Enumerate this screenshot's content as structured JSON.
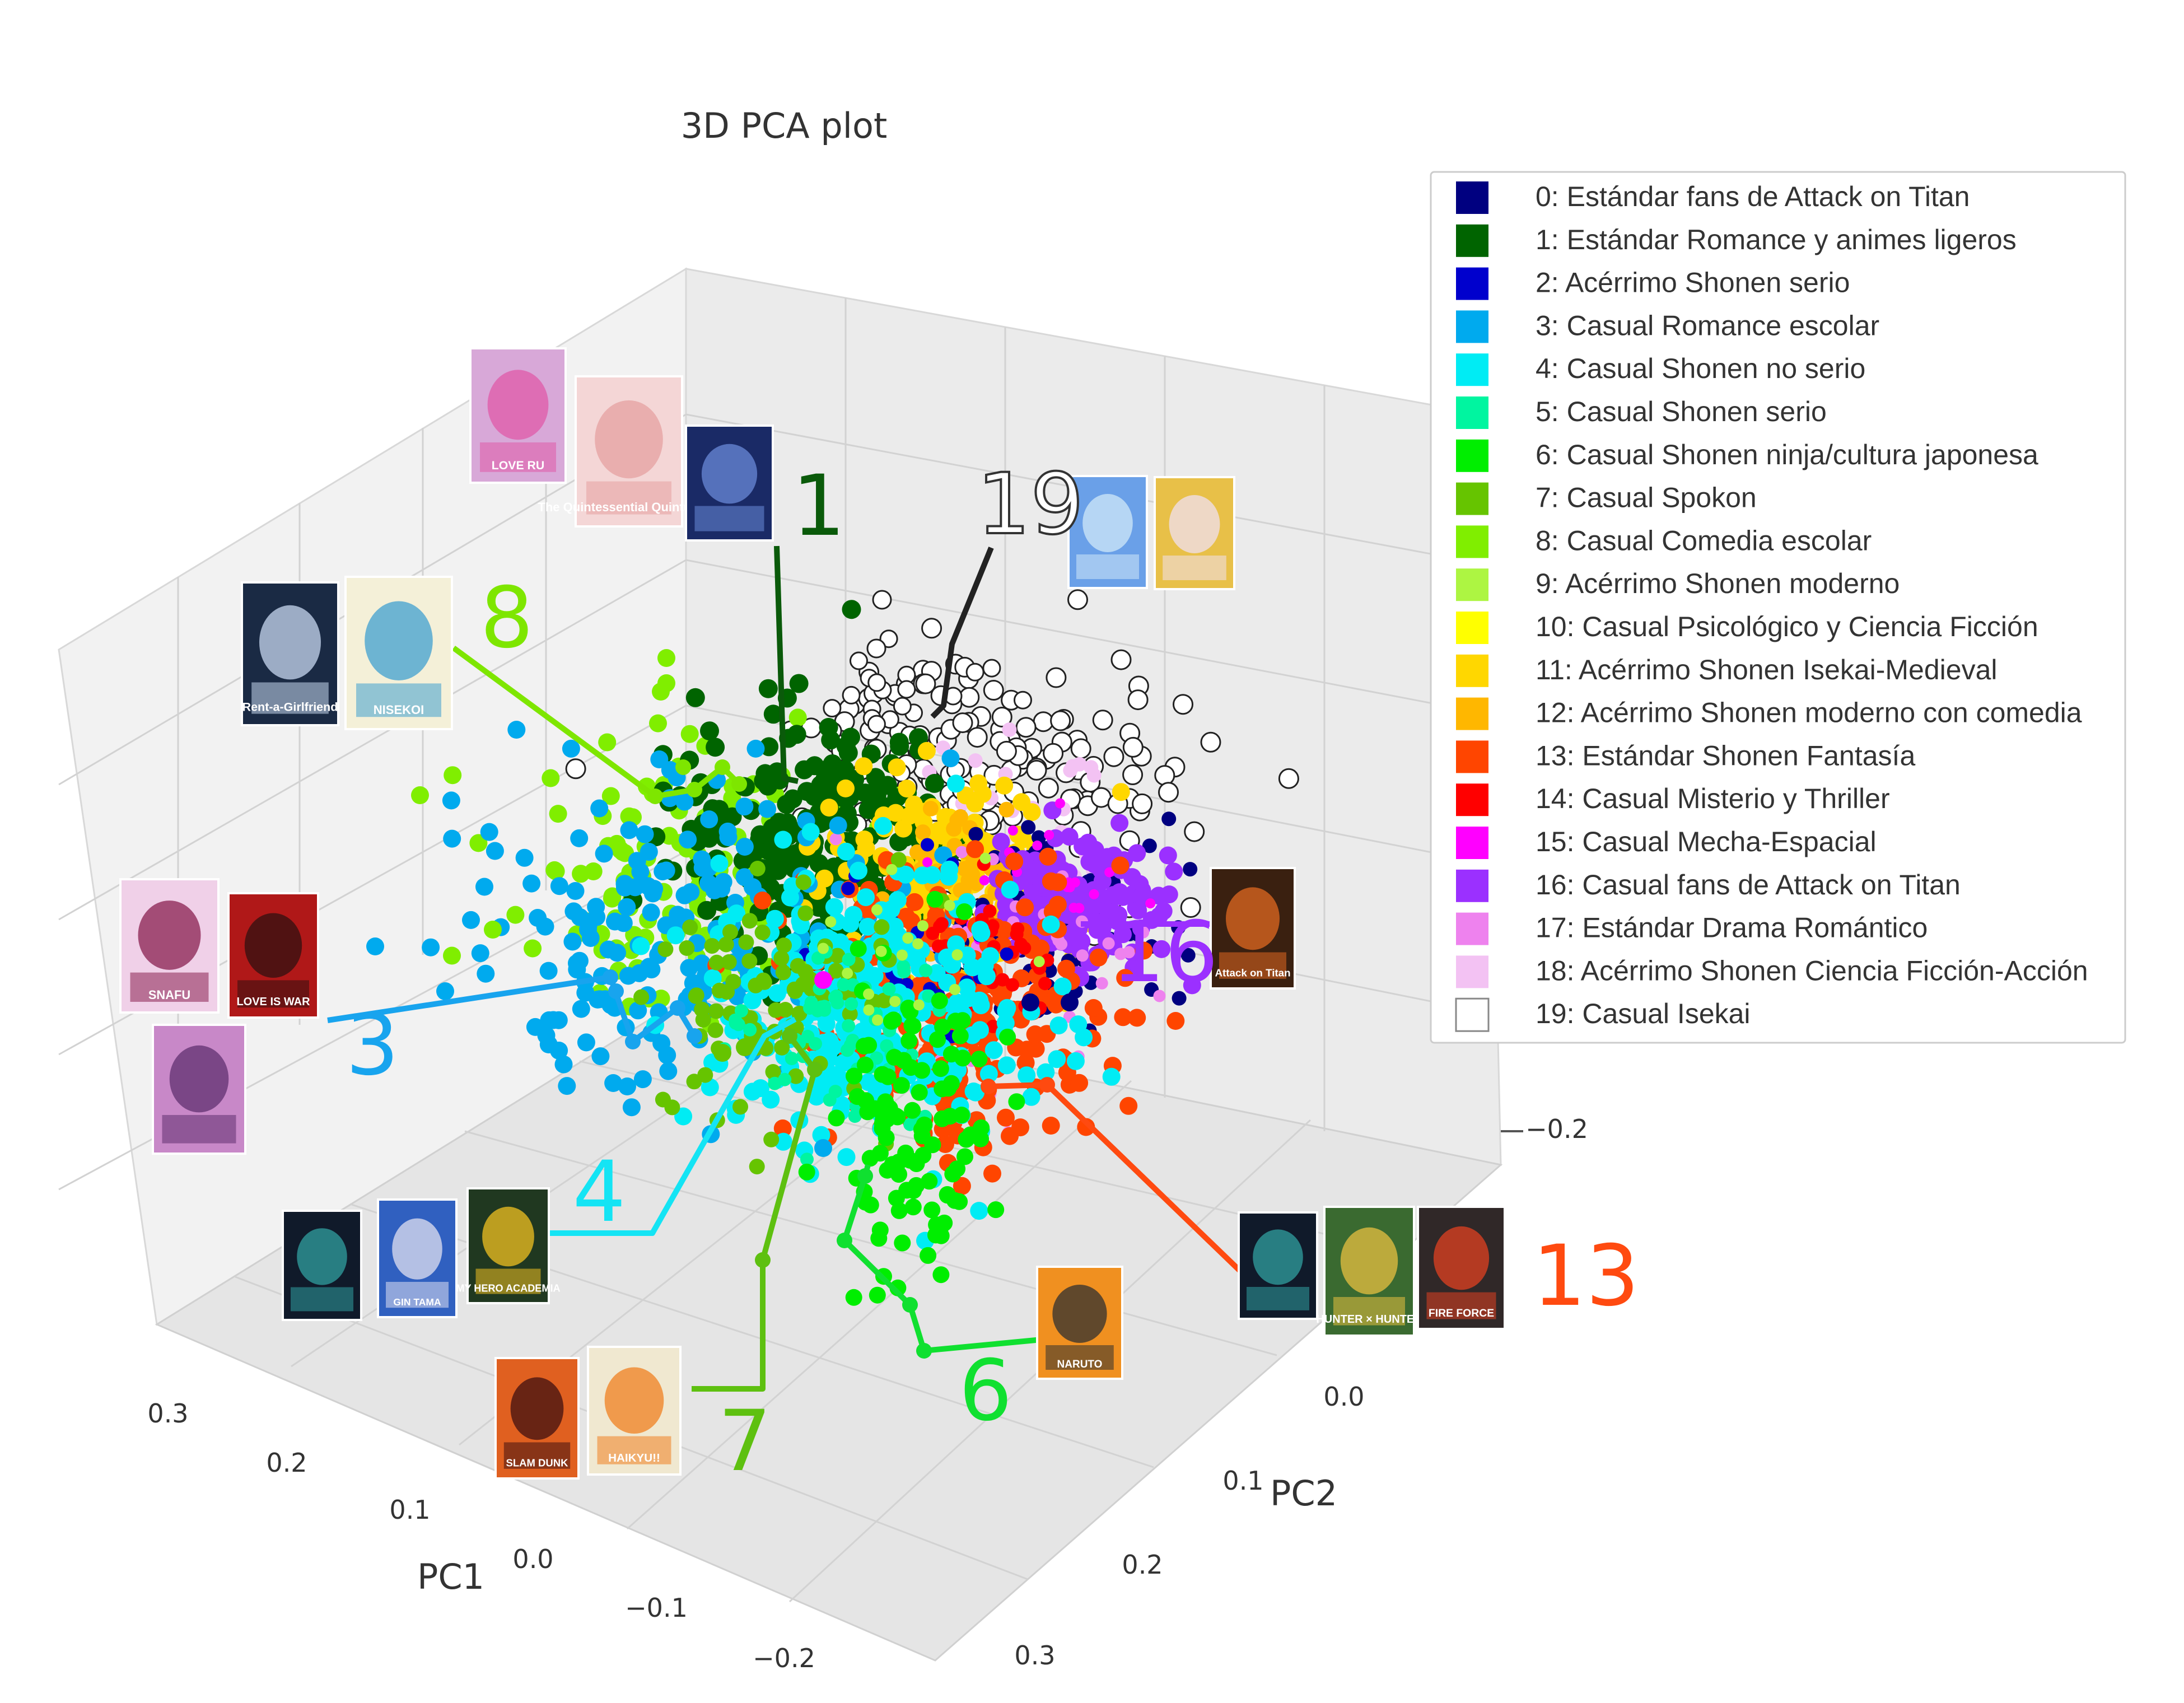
{
  "chart_data": {
    "type": "scatter",
    "projection": "3d",
    "title": "3D PCA plot",
    "xlabel": "PC1",
    "ylabel": "PC2",
    "zlabel": "",
    "x_ticks": [
      "0.3",
      "0.2",
      "0.1",
      "0.0",
      "−0.1",
      "−0.2"
    ],
    "y_ticks": [
      "0.0",
      "0.1",
      "0.2",
      "0.3"
    ],
    "z_ticks": [
      "−0.2"
    ],
    "grid": true,
    "legend_position": "top-right",
    "series": [
      {
        "name": "0: Estándar fans de Attack on Titan",
        "color": "#000080"
      },
      {
        "name": "1: Estándar Romance y animes ligeros",
        "color": "#006400"
      },
      {
        "name": "2: Acérrimo Shonen serio",
        "color": "#0000cd"
      },
      {
        "name": "3: Casual Romance escolar",
        "color": "#00aaee"
      },
      {
        "name": "4: Casual Shonen no serio",
        "color": "#00ecf4"
      },
      {
        "name": "5: Casual Shonen serio",
        "color": "#00f5a0"
      },
      {
        "name": "6: Casual Shonen ninja/cultura japonesa",
        "color": "#00ee00"
      },
      {
        "name": "7: Casual Spokon",
        "color": "#66c400"
      },
      {
        "name": "8: Casual Comedia escolar",
        "color": "#80ee00"
      },
      {
        "name": "9: Acérrimo Shonen moderno",
        "color": "#adf542"
      },
      {
        "name": "10: Casual Psicológico y Ciencia Ficción",
        "color": "#ffff00"
      },
      {
        "name": "11: Acérrimo Shonen Isekai-Medieval",
        "color": "#ffd700"
      },
      {
        "name": "12: Acérrimo Shonen moderno con comedia",
        "color": "#ffb700"
      },
      {
        "name": "13: Estándar Shonen Fantasía",
        "color": "#ff4500"
      },
      {
        "name": "14: Casual Misterio y Thriller",
        "color": "#ff0000"
      },
      {
        "name": "15: Casual Mecha-Espacial",
        "color": "#ff00ff"
      },
      {
        "name": "16: Casual fans de Attack on Titan",
        "color": "#9b30ff"
      },
      {
        "name": "17: Estándar Drama Romántico",
        "color": "#ee82ee"
      },
      {
        "name": "18: Acérrimo Shonen Ciencia Ficción-Acción",
        "color": "#f3c2f3"
      },
      {
        "name": "19: Casual Isekai",
        "color": "#ffffff"
      }
    ]
  },
  "annotations": [
    {
      "label": "1",
      "color": "#0a5a0a"
    },
    {
      "label": "19",
      "color": "#333333"
    },
    {
      "label": "8",
      "color": "#7ee600"
    },
    {
      "label": "3",
      "color": "#18a4ee"
    },
    {
      "label": "16",
      "color": "#9b30ff"
    },
    {
      "label": "4",
      "color": "#14e4f4"
    },
    {
      "label": "7",
      "color": "#5ec010"
    },
    {
      "label": "6",
      "color": "#10e030"
    },
    {
      "label": "13",
      "color": "#ff4a10"
    }
  ],
  "covers": {
    "love_ru": "LOVE RU",
    "quintuplets": "The Quintessential Quintuplets",
    "rent_girlfriend": "Rent-a-Girlfriend",
    "nisekoi": "NISEKOI",
    "snafu": "SNAFU",
    "love_is_war": "LOVE IS WAR",
    "attack_on_titan": "Attack on Titan",
    "gintama": "GIN TAMA",
    "hero_academia": "MY HERO ACADEMIA",
    "slam_dunk": "SLAM DUNK",
    "haikyu": "HAIKYU!!",
    "naruto": "NARUTO",
    "hunter": "HUNTER × HUNTER",
    "fire_force": "FIRE FORCE"
  }
}
